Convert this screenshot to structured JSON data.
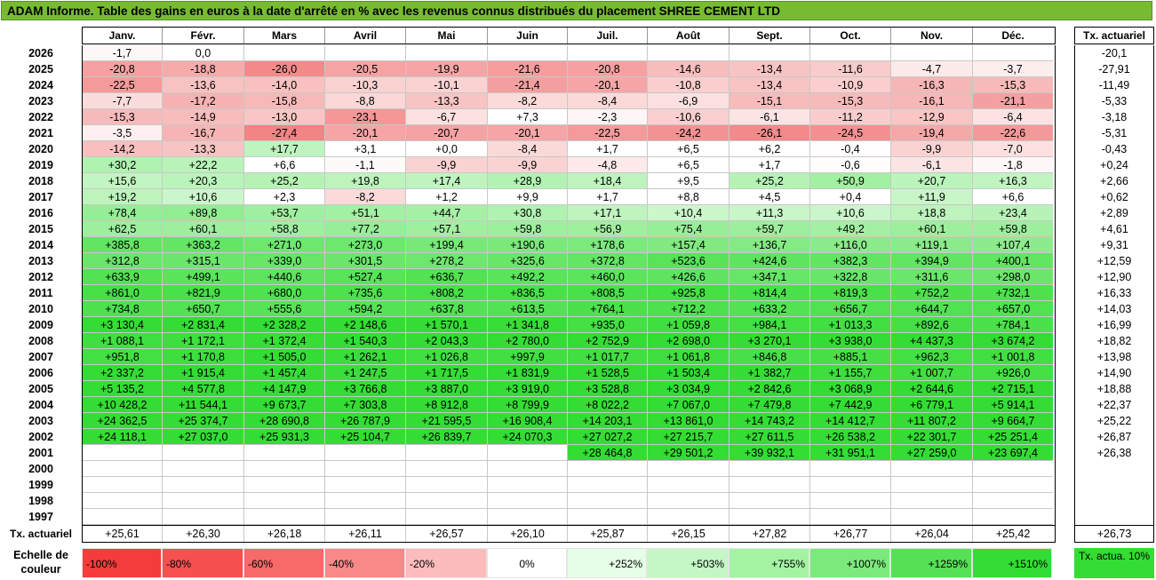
{
  "title": "ADAM Informe. Table des gains en euros à la date d'arrêté en % avec les revenus connus distribués du placement SHREE CEMENT LTD",
  "months": [
    "Janv.",
    "Févr.",
    "Mars",
    "Avril",
    "Mai",
    "Juin",
    "Juil.",
    "Août",
    "Sept.",
    "Oct.",
    "Nov.",
    "Déc."
  ],
  "right_header": "Tx. actuariel",
  "rows": [
    {
      "year": "2026",
      "cells": [
        "-1,7",
        "0,0",
        "",
        "",
        "",
        "",
        "",
        "",
        "",
        "",
        "",
        ""
      ],
      "tx": "-20,1"
    },
    {
      "year": "2025",
      "cells": [
        "-20,8",
        "-18,8",
        "-26,0",
        "-20,5",
        "-19,9",
        "-21,6",
        "-20,8",
        "-14,6",
        "-13,4",
        "-11,6",
        "-4,7",
        "-3,7"
      ],
      "tx": "-27,91"
    },
    {
      "year": "2024",
      "cells": [
        "-22,5",
        "-13,6",
        "-14,0",
        "-10,3",
        "-10,1",
        "-21,4",
        "-20,1",
        "-10,8",
        "-13,4",
        "-10,9",
        "-16,3",
        "-15,3"
      ],
      "tx": "-11,49"
    },
    {
      "year": "2023",
      "cells": [
        "-7,7",
        "-17,2",
        "-15,8",
        "-8,8",
        "-13,3",
        "-8,2",
        "-8,4",
        "-6,9",
        "-15,1",
        "-15,3",
        "-16,1",
        "-21,1"
      ],
      "tx": "-5,33"
    },
    {
      "year": "2022",
      "cells": [
        "-15,3",
        "-14,9",
        "-13,0",
        "-23,1",
        "-6,7",
        "+7,3",
        "-2,3",
        "-10,6",
        "-6,1",
        "-11,2",
        "-12,9",
        "-6,4"
      ],
      "tx": "-3,18"
    },
    {
      "year": "2021",
      "cells": [
        "-3,5",
        "-16,7",
        "-27,4",
        "-20,1",
        "-20,7",
        "-20,1",
        "-22,5",
        "-24,2",
        "-26,1",
        "-24,5",
        "-19,4",
        "-22,6"
      ],
      "tx": "-5,31"
    },
    {
      "year": "2020",
      "cells": [
        "-14,2",
        "-13,3",
        "+17,7",
        "+3,1",
        "+0,0",
        "-8,4",
        "+1,7",
        "+6,5",
        "+6,2",
        "-0,4",
        "-9,9",
        "-7,0"
      ],
      "tx": "-0,43"
    },
    {
      "year": "2019",
      "cells": [
        "+30,2",
        "+22,2",
        "+6,6",
        "-1,1",
        "-9,9",
        "-9,9",
        "-4,8",
        "+6,5",
        "+1,7",
        "-0,6",
        "-6,1",
        "-1,8"
      ],
      "tx": "+0,24"
    },
    {
      "year": "2018",
      "cells": [
        "+15,6",
        "+20,3",
        "+25,2",
        "+19,8",
        "+17,4",
        "+28,9",
        "+18,4",
        "+9,5",
        "+25,2",
        "+50,9",
        "+20,7",
        "+16,3"
      ],
      "tx": "+2,66"
    },
    {
      "year": "2017",
      "cells": [
        "+19,2",
        "+10,6",
        "+2,3",
        "-8,2",
        "+1,2",
        "+9,9",
        "+1,7",
        "+8,8",
        "+4,5",
        "+0,4",
        "+11,9",
        "+6,6"
      ],
      "tx": "+0,62"
    },
    {
      "year": "2016",
      "cells": [
        "+78,4",
        "+89,8",
        "+53,7",
        "+51,1",
        "+44,7",
        "+30,8",
        "+17,1",
        "+10,4",
        "+11,3",
        "+10,6",
        "+18,8",
        "+23,4"
      ],
      "tx": "+2,89"
    },
    {
      "year": "2015",
      "cells": [
        "+62,5",
        "+60,1",
        "+58,8",
        "+77,2",
        "+57,1",
        "+59,8",
        "+56,9",
        "+75,4",
        "+59,7",
        "+49,2",
        "+60,1",
        "+59,8"
      ],
      "tx": "+4,61"
    },
    {
      "year": "2014",
      "cells": [
        "+385,8",
        "+363,2",
        "+271,0",
        "+273,0",
        "+199,4",
        "+190,6",
        "+178,6",
        "+157,4",
        "+136,7",
        "+116,0",
        "+119,1",
        "+107,4"
      ],
      "tx": "+9,31"
    },
    {
      "year": "2013",
      "cells": [
        "+312,8",
        "+315,1",
        "+339,0",
        "+301,5",
        "+278,2",
        "+325,6",
        "+372,8",
        "+523,6",
        "+424,6",
        "+382,3",
        "+394,9",
        "+400,1"
      ],
      "tx": "+12,59"
    },
    {
      "year": "2012",
      "cells": [
        "+633,9",
        "+499,1",
        "+440,6",
        "+527,4",
        "+636,7",
        "+492,2",
        "+460,0",
        "+426,6",
        "+347,1",
        "+322,8",
        "+311,6",
        "+298,0"
      ],
      "tx": "+12,90"
    },
    {
      "year": "2011",
      "cells": [
        "+861,0",
        "+821,9",
        "+680,0",
        "+735,6",
        "+808,2",
        "+836,5",
        "+808,5",
        "+925,8",
        "+814,4",
        "+819,3",
        "+752,2",
        "+732,1"
      ],
      "tx": "+16,33"
    },
    {
      "year": "2010",
      "cells": [
        "+734,8",
        "+650,7",
        "+555,6",
        "+594,2",
        "+637,8",
        "+613,5",
        "+764,1",
        "+712,2",
        "+633,2",
        "+656,7",
        "+644,7",
        "+657,0"
      ],
      "tx": "+14,03"
    },
    {
      "year": "2009",
      "cells": [
        "+3 130,4",
        "+2 831,4",
        "+2 328,2",
        "+2 148,6",
        "+1 570,1",
        "+1 341,8",
        "+935,0",
        "+1 059,8",
        "+984,1",
        "+1 013,3",
        "+892,6",
        "+784,1"
      ],
      "tx": "+16,99"
    },
    {
      "year": "2008",
      "cells": [
        "+1 088,1",
        "+1 172,1",
        "+1 372,4",
        "+1 540,3",
        "+2 043,3",
        "+2 780,0",
        "+2 752,9",
        "+2 698,0",
        "+3 270,1",
        "+3 938,0",
        "+4 437,3",
        "+3 674,2"
      ],
      "tx": "+18,82"
    },
    {
      "year": "2007",
      "cells": [
        "+951,8",
        "+1 170,8",
        "+1 505,0",
        "+1 262,1",
        "+1 026,8",
        "+997,9",
        "+1 017,7",
        "+1 061,8",
        "+846,8",
        "+885,1",
        "+962,3",
        "+1 001,8"
      ],
      "tx": "+13,98"
    },
    {
      "year": "2006",
      "cells": [
        "+2 337,2",
        "+1 915,4",
        "+1 457,4",
        "+1 247,5",
        "+1 717,5",
        "+1 831,9",
        "+1 528,5",
        "+1 503,4",
        "+1 382,7",
        "+1 155,7",
        "+1 007,7",
        "+926,0"
      ],
      "tx": "+14,90"
    },
    {
      "year": "2005",
      "cells": [
        "+5 135,2",
        "+4 577,8",
        "+4 147,9",
        "+3 766,8",
        "+3 887,0",
        "+3 919,0",
        "+3 528,8",
        "+3 034,9",
        "+2 842,6",
        "+3 068,9",
        "+2 644,6",
        "+2 715,1"
      ],
      "tx": "+18,88"
    },
    {
      "year": "2004",
      "cells": [
        "+10 428,2",
        "+11 544,1",
        "+9 673,7",
        "+7 303,8",
        "+8 912,8",
        "+8 799,9",
        "+8 022,2",
        "+7 067,0",
        "+7 479,8",
        "+7 442,9",
        "+6 779,1",
        "+5 914,1"
      ],
      "tx": "+22,37"
    },
    {
      "year": "2003",
      "cells": [
        "+24 362,5",
        "+25 374,7",
        "+28 690,8",
        "+26 787,9",
        "+21 595,5",
        "+16 908,4",
        "+14 203,1",
        "+13 861,0",
        "+14 743,2",
        "+14 412,7",
        "+11 807,2",
        "+9 664,7"
      ],
      "tx": "+25,22"
    },
    {
      "year": "2002",
      "cells": [
        "+24 118,1",
        "+27 037,0",
        "+25 931,3",
        "+25 104,7",
        "+26 839,7",
        "+24 070,3",
        "+27 027,2",
        "+27 215,7",
        "+27 611,5",
        "+26 538,2",
        "+22 301,7",
        "+25 251,4"
      ],
      "tx": "+26,87"
    },
    {
      "year": "2001",
      "cells": [
        "",
        "",
        "",
        "",
        "",
        "",
        "+28 464,8",
        "+29 501,2",
        "+39 932,1",
        "+31 951,1",
        "+27 259,0",
        "+23 697,4"
      ],
      "tx": "+26,38"
    },
    {
      "year": "2000",
      "cells": [
        "",
        "",
        "",
        "",
        "",
        "",
        "",
        "",
        "",
        "",
        "",
        ""
      ],
      "tx": ""
    },
    {
      "year": "1999",
      "cells": [
        "",
        "",
        "",
        "",
        "",
        "",
        "",
        "",
        "",
        "",
        "",
        ""
      ],
      "tx": ""
    },
    {
      "year": "1998",
      "cells": [
        "",
        "",
        "",
        "",
        "",
        "",
        "",
        "",
        "",
        "",
        "",
        ""
      ],
      "tx": ""
    },
    {
      "year": "1997",
      "cells": [
        "",
        "",
        "",
        "",
        "",
        "",
        "",
        "",
        "",
        "",
        "",
        ""
      ],
      "tx": ""
    }
  ],
  "total_label": "Tx. actuariel",
  "totals": [
    "+25,61",
    "+26,30",
    "+26,18",
    "+26,11",
    "+26,57",
    "+26,10",
    "+25,87",
    "+26,15",
    "+27,82",
    "+26,77",
    "+26,04",
    "+25,42"
  ],
  "grand_total": "+26,73",
  "scale_label": "Echelle de couleur",
  "scale": [
    {
      "label": "-100%",
      "color": "#f43c3c",
      "align": "left"
    },
    {
      "label": "-80%",
      "color": "#f65050",
      "align": "left"
    },
    {
      "label": "-60%",
      "color": "#f86a6a",
      "align": "left"
    },
    {
      "label": "-40%",
      "color": "#f98888",
      "align": "left"
    },
    {
      "label": "-20%",
      "color": "#fbbcbc",
      "align": "left"
    },
    {
      "label": "0%",
      "color": "#ffffff",
      "align": "center"
    },
    {
      "label": "+252%",
      "color": "#e6fde6",
      "align": "right"
    },
    {
      "label": "+503%",
      "color": "#c4f7c4",
      "align": "right"
    },
    {
      "label": "+755%",
      "color": "#a3f3a3",
      "align": "right"
    },
    {
      "label": "+1007%",
      "color": "#7be97b",
      "align": "right"
    },
    {
      "label": "+1259%",
      "color": "#55e055",
      "align": "right"
    },
    {
      "label": "+1510%",
      "color": "#33dd33",
      "align": "right"
    }
  ],
  "scale_example": "Tx. actua. 10%"
}
